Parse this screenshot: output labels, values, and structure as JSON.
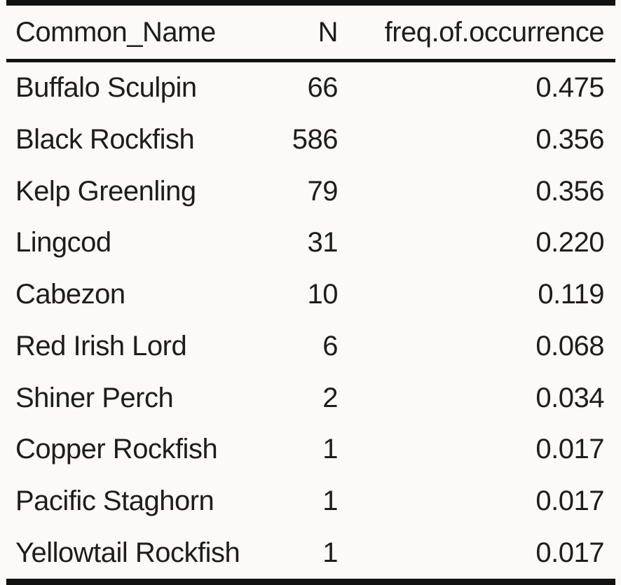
{
  "table": {
    "columns": {
      "name": "Common_Name",
      "n": "N",
      "freq": "freq.of.occurrence"
    },
    "rows": [
      {
        "name": "Buffalo Sculpin",
        "n": "66",
        "freq": "0.475"
      },
      {
        "name": "Black Rockfish",
        "n": "586",
        "freq": "0.356"
      },
      {
        "name": "Kelp Greenling",
        "n": "79",
        "freq": "0.356"
      },
      {
        "name": "Lingcod",
        "n": "31",
        "freq": "0.220"
      },
      {
        "name": "Cabezon",
        "n": "10",
        "freq": "0.119"
      },
      {
        "name": "Red Irish Lord",
        "n": "6",
        "freq": "0.068"
      },
      {
        "name": "Shiner Perch",
        "n": "2",
        "freq": "0.034"
      },
      {
        "name": "Copper Rockfish",
        "n": "1",
        "freq": "0.017"
      },
      {
        "name": "Pacific Staghorn",
        "n": "1",
        "freq": "0.017"
      },
      {
        "name": "Yellowtail Rockfish",
        "n": "1",
        "freq": "0.017"
      }
    ],
    "colors": {
      "background": "#fbfaf8",
      "rule": "#121212",
      "text": "#1d1d1b"
    }
  },
  "chart_data": {
    "type": "table",
    "columns": [
      "Common_Name",
      "N",
      "freq.of.occurrence"
    ],
    "rows": [
      [
        "Buffalo Sculpin",
        66,
        0.475
      ],
      [
        "Black Rockfish",
        586,
        0.356
      ],
      [
        "Kelp Greenling",
        79,
        0.356
      ],
      [
        "Lingcod",
        31,
        0.22
      ],
      [
        "Cabezon",
        10,
        0.119
      ],
      [
        "Red Irish Lord",
        6,
        0.068
      ],
      [
        "Shiner Perch",
        2,
        0.034
      ],
      [
        "Copper Rockfish",
        1,
        0.017
      ],
      [
        "Pacific Staghorn",
        1,
        0.017
      ],
      [
        "Yellowtail Rockfish",
        1,
        0.017
      ]
    ],
    "title": "",
    "notes": "Frequency of occurrence of fish species; booktabs-style table with top rule, header midrule, bottom rule"
  }
}
